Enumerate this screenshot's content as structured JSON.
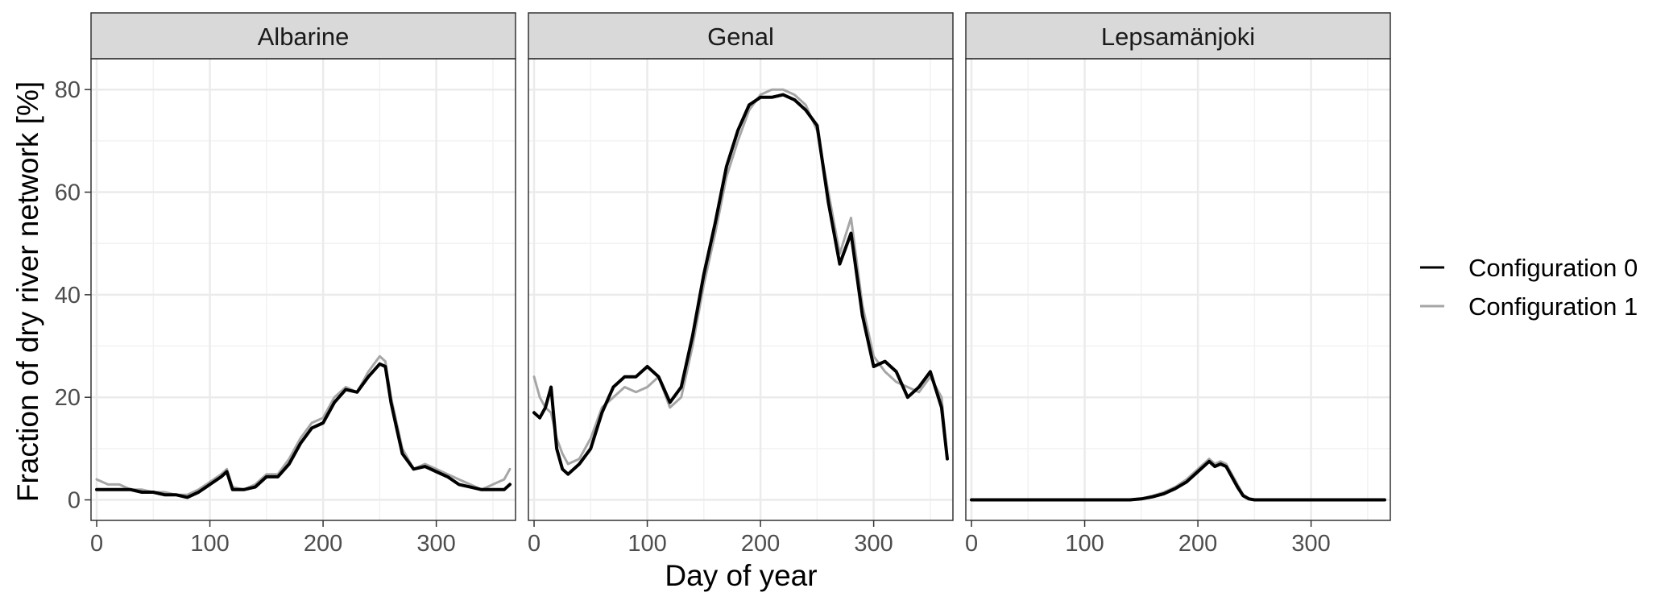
{
  "chart_data": {
    "type": "line",
    "xlabel": "Day of year",
    "ylabel": "Fraction of dry river network [%]",
    "xlim": [
      -5,
      370
    ],
    "ylim": [
      -4,
      86
    ],
    "x_ticks": [
      0,
      100,
      200,
      300
    ],
    "y_ticks": [
      0,
      20,
      40,
      60,
      80
    ],
    "grid": true,
    "legend_position": "right",
    "legend": [
      {
        "label": "Configuration 0",
        "color": "#000000"
      },
      {
        "label": "Configuration 1",
        "color": "#a6a6a6"
      }
    ],
    "facets": [
      {
        "title": "Albarine",
        "series": [
          {
            "name": "Configuration 1",
            "color": "#a6a6a6",
            "x": [
              0,
              10,
              20,
              30,
              40,
              50,
              60,
              70,
              80,
              90,
              100,
              110,
              115,
              120,
              130,
              140,
              150,
              160,
              170,
              180,
              190,
              200,
              210,
              220,
              230,
              240,
              250,
              255,
              260,
              265,
              270,
              280,
              290,
              300,
              310,
              320,
              330,
              340,
              350,
              360,
              365
            ],
            "y": [
              4,
              3,
              3,
              2,
              2,
              1.5,
              1.5,
              1,
              1,
              2,
              3.5,
              5,
              6,
              2.5,
              2,
              3,
              5,
              5,
              8,
              12,
              15,
              16,
              20,
              22,
              21,
              25,
              28,
              27,
              20,
              15,
              10,
              6,
              7,
              6,
              5,
              4,
              3,
              2,
              3,
              4,
              6
            ]
          },
          {
            "name": "Configuration 0",
            "color": "#000000",
            "x": [
              0,
              10,
              20,
              30,
              40,
              50,
              60,
              70,
              80,
              90,
              100,
              110,
              115,
              120,
              130,
              140,
              150,
              160,
              170,
              180,
              190,
              200,
              210,
              220,
              230,
              240,
              250,
              255,
              260,
              265,
              270,
              280,
              290,
              300,
              310,
              320,
              330,
              340,
              350,
              360,
              365
            ],
            "y": [
              2,
              2,
              2,
              2,
              1.5,
              1.5,
              1,
              1,
              0.5,
              1.5,
              3,
              4.5,
              5.5,
              2,
              2,
              2.5,
              4.5,
              4.5,
              7,
              11,
              14,
              15,
              19,
              21.5,
              21,
              24,
              26.5,
              26,
              19,
              14,
              9,
              6,
              6.5,
              5.5,
              4.5,
              3,
              2.5,
              2,
              2,
              2,
              3
            ]
          }
        ]
      },
      {
        "title": "Genal",
        "series": [
          {
            "name": "Configuration 1",
            "color": "#a6a6a6",
            "x": [
              0,
              5,
              10,
              15,
              20,
              25,
              30,
              40,
              50,
              60,
              70,
              80,
              90,
              100,
              110,
              120,
              130,
              140,
              150,
              160,
              170,
              180,
              190,
              200,
              210,
              220,
              230,
              240,
              250,
              260,
              270,
              280,
              290,
              300,
              310,
              320,
              330,
              340,
              350,
              360,
              365
            ],
            "y": [
              24,
              20,
              18,
              17,
              12,
              9,
              7,
              8,
              12,
              18,
              20,
              22,
              21,
              22,
              24,
              18,
              20,
              30,
              42,
              52,
              63,
              70,
              76,
              79,
              80,
              80,
              79,
              77,
              72,
              60,
              48,
              55,
              38,
              28,
              25,
              23,
              22,
              21,
              24,
              20,
              8
            ]
          },
          {
            "name": "Configuration 0",
            "color": "#000000",
            "x": [
              0,
              5,
              10,
              15,
              20,
              25,
              30,
              40,
              50,
              60,
              70,
              80,
              90,
              100,
              110,
              120,
              130,
              140,
              150,
              160,
              170,
              180,
              190,
              200,
              210,
              220,
              230,
              240,
              250,
              260,
              270,
              280,
              290,
              300,
              310,
              320,
              330,
              340,
              350,
              360,
              365
            ],
            "y": [
              17,
              16,
              18,
              22,
              10,
              6,
              5,
              7,
              10,
              17,
              22,
              24,
              24,
              26,
              24,
              19,
              22,
              32,
              44,
              54,
              65,
              72,
              77,
              78.5,
              78.5,
              79,
              78,
              76,
              73,
              58,
              46,
              52,
              36,
              26,
              27,
              25,
              20,
              22,
              25,
              18,
              8
            ]
          }
        ]
      },
      {
        "title": "Lepsamänjoki",
        "series": [
          {
            "name": "Configuration 1",
            "color": "#a6a6a6",
            "x": [
              0,
              140,
              150,
              160,
              170,
              180,
              190,
              200,
              205,
              210,
              215,
              220,
              225,
              230,
              235,
              240,
              245,
              250,
              265,
              280,
              365
            ],
            "y": [
              0,
              0,
              0.2,
              0.8,
              1.5,
              2.5,
              4,
              6,
              7,
              8,
              7,
              7.5,
              7,
              5,
              3,
              1,
              0.3,
              0,
              0,
              0,
              0
            ]
          },
          {
            "name": "Configuration 0",
            "color": "#000000",
            "x": [
              0,
              140,
              150,
              160,
              170,
              180,
              190,
              200,
              205,
              210,
              215,
              220,
              225,
              230,
              235,
              240,
              245,
              250,
              265,
              280,
              365
            ],
            "y": [
              0,
              0,
              0.2,
              0.6,
              1.2,
              2.2,
              3.5,
              5.5,
              6.5,
              7.5,
              6.5,
              7,
              6.5,
              4.5,
              2.5,
              0.8,
              0.2,
              0,
              0,
              0,
              0
            ]
          }
        ]
      }
    ]
  }
}
